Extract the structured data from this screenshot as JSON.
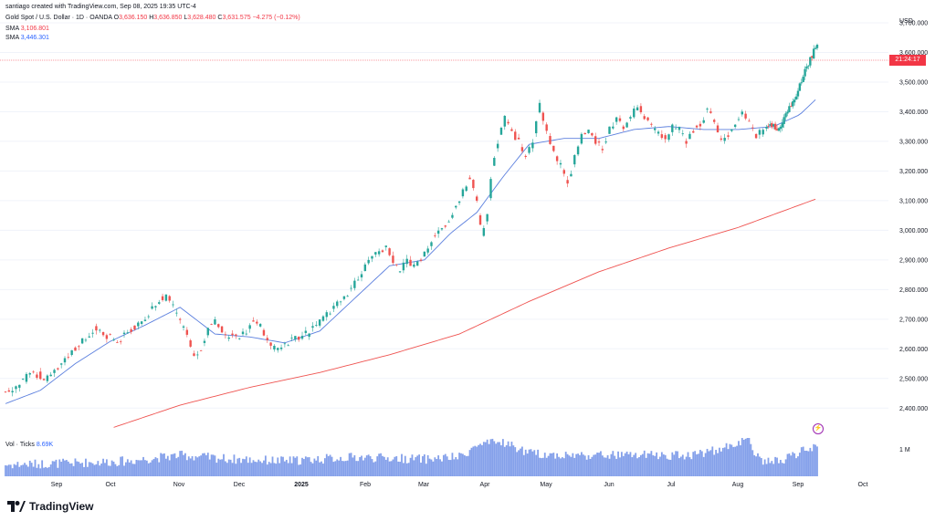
{
  "header": {
    "attribution": "santiago created with TradingView.com, Sep 08, 2025 19:35 UTC-4",
    "symbol": "Gold Spot / U.S. Dollar · 1D · OANDA",
    "ohlc": {
      "o_label": "O",
      "o": "3,636.150",
      "h_label": "H",
      "h": "3,636.850",
      "l_label": "L",
      "l": "3,628.480",
      "c_label": "C",
      "c": "3,631.575",
      "change": "−4.275 (−0.12%)"
    },
    "sma200_label": "SMA",
    "sma200_value": "3,106.801",
    "sma50_label": "SMA",
    "sma50_value": "3,446.301"
  },
  "price_axis": {
    "currency": "USD",
    "last_price_tag": "3,631.575",
    "countdown": "21:24:17"
  },
  "volume": {
    "label": "Vol · Ticks",
    "value": "8.69K",
    "axis_label": "1 M"
  },
  "branding": {
    "logo_text": "TradingView"
  },
  "colors": {
    "up": "#26a69a",
    "down": "#ef5350",
    "sma50": "#5b7fde",
    "sma200": "#ef5350",
    "volume": "#6e8fe6",
    "last_tag_bg": "#f23645"
  },
  "chart_data": {
    "type": "candlestick",
    "title": "Gold Spot / U.S. Dollar · 1D · OANDA",
    "ylabel": "USD",
    "ylim": [
      2330,
      3740
    ],
    "y_ticks": [
      2400,
      2500,
      2600,
      2700,
      2800,
      2900,
      3000,
      3100,
      3200,
      3300,
      3400,
      3500,
      3600,
      3700
    ],
    "y_tick_labels": [
      "2,400.000",
      "2,500.000",
      "2,600.000",
      "2,700.000",
      "2,800.000",
      "2,900.000",
      "3,000.000",
      "3,100.000",
      "3,200.000",
      "3,300.000",
      "3,400.000",
      "3,500.000",
      "3,600.000",
      "3,700.000"
    ],
    "x_ticks": [
      "Sep",
      "Oct",
      "Nov",
      "Dec",
      "2025",
      "Feb",
      "Mar",
      "Apr",
      "May",
      "Jun",
      "Jul",
      "Aug",
      "Sep",
      "Oct"
    ],
    "close_path": [
      [
        0,
        2455
      ],
      [
        6,
        2470
      ],
      [
        12,
        2505
      ],
      [
        16,
        2520
      ],
      [
        22,
        2500
      ],
      [
        28,
        2530
      ],
      [
        34,
        2560
      ],
      [
        40,
        2600
      ],
      [
        46,
        2640
      ],
      [
        52,
        2670
      ],
      [
        56,
        2645
      ],
      [
        60,
        2640
      ],
      [
        64,
        2620
      ],
      [
        70,
        2660
      ],
      [
        76,
        2680
      ],
      [
        82,
        2720
      ],
      [
        88,
        2760
      ],
      [
        92,
        2780
      ],
      [
        96,
        2740
      ],
      [
        100,
        2700
      ],
      [
        104,
        2640
      ],
      [
        108,
        2580
      ],
      [
        112,
        2600
      ],
      [
        116,
        2660
      ],
      [
        120,
        2700
      ],
      [
        124,
        2660
      ],
      [
        128,
        2640
      ],
      [
        134,
        2640
      ],
      [
        138,
        2660
      ],
      [
        142,
        2700
      ],
      [
        146,
        2680
      ],
      [
        150,
        2620
      ],
      [
        154,
        2600
      ],
      [
        158,
        2600
      ],
      [
        162,
        2620
      ],
      [
        166,
        2640
      ],
      [
        170,
        2640
      ],
      [
        176,
        2670
      ],
      [
        182,
        2700
      ],
      [
        188,
        2740
      ],
      [
        194,
        2770
      ],
      [
        200,
        2820
      ],
      [
        206,
        2880
      ],
      [
        212,
        2920
      ],
      [
        218,
        2940
      ],
      [
        222,
        2900
      ],
      [
        226,
        2860
      ],
      [
        230,
        2900
      ],
      [
        234,
        2880
      ],
      [
        238,
        2900
      ],
      [
        242,
        2940
      ],
      [
        246,
        2990
      ],
      [
        250,
        3010
      ],
      [
        254,
        3030
      ],
      [
        258,
        3080
      ],
      [
        262,
        3130
      ],
      [
        266,
        3180
      ],
      [
        270,
        3100
      ],
      [
        273,
        2990
      ],
      [
        276,
        3060
      ],
      [
        279,
        3220
      ],
      [
        282,
        3300
      ],
      [
        286,
        3380
      ],
      [
        290,
        3330
      ],
      [
        294,
        3300
      ],
      [
        298,
        3240
      ],
      [
        302,
        3300
      ],
      [
        306,
        3420
      ],
      [
        310,
        3330
      ],
      [
        314,
        3260
      ],
      [
        318,
        3220
      ],
      [
        322,
        3150
      ],
      [
        326,
        3250
      ],
      [
        330,
        3320
      ],
      [
        334,
        3340
      ],
      [
        338,
        3300
      ],
      [
        342,
        3280
      ],
      [
        346,
        3340
      ],
      [
        350,
        3380
      ],
      [
        354,
        3350
      ],
      [
        358,
        3380
      ],
      [
        362,
        3420
      ],
      [
        366,
        3380
      ],
      [
        370,
        3350
      ],
      [
        374,
        3330
      ],
      [
        378,
        3300
      ],
      [
        382,
        3350
      ],
      [
        386,
        3340
      ],
      [
        390,
        3300
      ],
      [
        394,
        3340
      ],
      [
        398,
        3350
      ],
      [
        402,
        3410
      ],
      [
        406,
        3360
      ],
      [
        410,
        3300
      ],
      [
        414,
        3320
      ],
      [
        418,
        3360
      ],
      [
        422,
        3390
      ],
      [
        426,
        3360
      ],
      [
        430,
        3320
      ],
      [
        434,
        3340
      ],
      [
        438,
        3360
      ],
      [
        442,
        3340
      ],
      [
        446,
        3380
      ],
      [
        450,
        3420
      ],
      [
        454,
        3470
      ],
      [
        458,
        3540
      ],
      [
        462,
        3590
      ],
      [
        465,
        3632
      ]
    ],
    "sma50_path": [
      [
        0,
        2415
      ],
      [
        20,
        2460
      ],
      [
        40,
        2550
      ],
      [
        60,
        2625
      ],
      [
        80,
        2680
      ],
      [
        100,
        2740
      ],
      [
        120,
        2650
      ],
      [
        140,
        2640
      ],
      [
        160,
        2620
      ],
      [
        180,
        2660
      ],
      [
        200,
        2770
      ],
      [
        220,
        2880
      ],
      [
        240,
        2900
      ],
      [
        255,
        2990
      ],
      [
        270,
        3060
      ],
      [
        285,
        3180
      ],
      [
        300,
        3290
      ],
      [
        320,
        3310
      ],
      [
        340,
        3310
      ],
      [
        360,
        3340
      ],
      [
        380,
        3350
      ],
      [
        400,
        3340
      ],
      [
        420,
        3340
      ],
      [
        440,
        3350
      ],
      [
        455,
        3390
      ],
      [
        465,
        3446
      ]
    ],
    "sma200_path": [
      [
        62,
        2335
      ],
      [
        100,
        2410
      ],
      [
        140,
        2470
      ],
      [
        180,
        2520
      ],
      [
        220,
        2580
      ],
      [
        260,
        2650
      ],
      [
        300,
        2760
      ],
      [
        340,
        2860
      ],
      [
        380,
        2940
      ],
      [
        420,
        3010
      ],
      [
        465,
        3107
      ]
    ],
    "volume_path": [
      [
        0,
        0.3
      ],
      [
        40,
        0.35
      ],
      [
        70,
        0.4
      ],
      [
        100,
        0.55
      ],
      [
        130,
        0.45
      ],
      [
        160,
        0.4
      ],
      [
        200,
        0.5
      ],
      [
        240,
        0.45
      ],
      [
        260,
        0.5
      ],
      [
        270,
        0.8
      ],
      [
        285,
        0.9
      ],
      [
        300,
        0.6
      ],
      [
        320,
        0.55
      ],
      [
        340,
        0.55
      ],
      [
        360,
        0.55
      ],
      [
        390,
        0.55
      ],
      [
        410,
        0.7
      ],
      [
        425,
        1.0
      ],
      [
        432,
        0.4
      ],
      [
        445,
        0.4
      ],
      [
        460,
        0.75
      ],
      [
        465,
        0.7
      ]
    ],
    "total_bars": 466
  }
}
